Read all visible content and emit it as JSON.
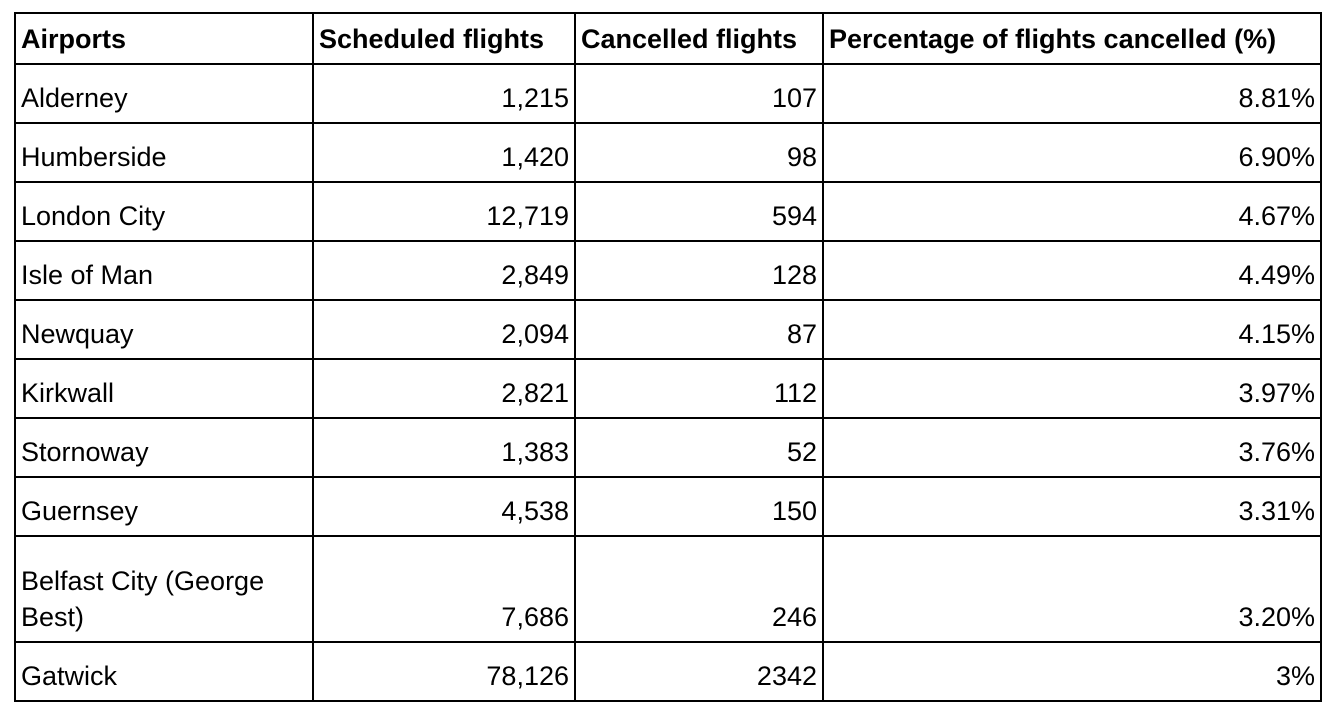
{
  "chart_data": {
    "type": "table",
    "columns": [
      "Airports",
      "Scheduled flights",
      "Cancelled flights",
      "Percentage of flights cancelled (%)"
    ],
    "rows": [
      [
        "Alderney",
        "1,215",
        "107",
        "8.81%"
      ],
      [
        "Humberside",
        "1,420",
        "98",
        "6.90%"
      ],
      [
        "London City",
        "12,719",
        "594",
        "4.67%"
      ],
      [
        "Isle of Man",
        "2,849",
        "128",
        "4.49%"
      ],
      [
        "Newquay",
        "2,094",
        "87",
        "4.15%"
      ],
      [
        "Kirkwall",
        "2,821",
        "112",
        "3.97%"
      ],
      [
        "Stornoway",
        "1,383",
        "52",
        "3.76%"
      ],
      [
        "Guernsey",
        "4,538",
        "150",
        "3.31%"
      ],
      [
        "Belfast City (George Best)",
        "7,686",
        "246",
        "3.20%"
      ],
      [
        "Gatwick",
        "78,126",
        "2342",
        "3%"
      ]
    ]
  }
}
